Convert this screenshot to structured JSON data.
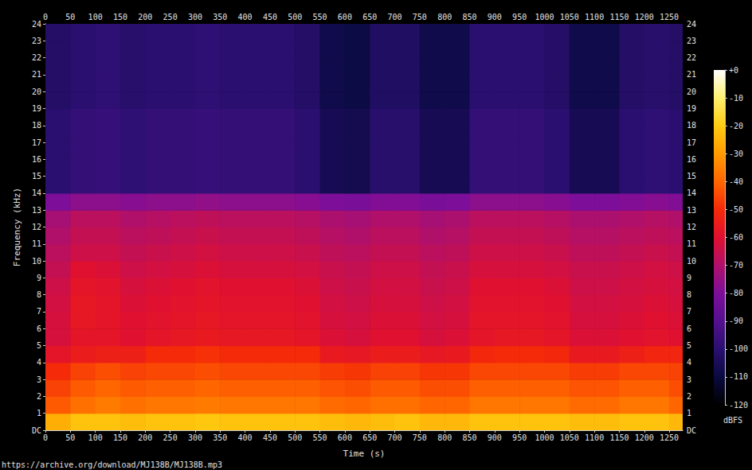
{
  "chart_data": {
    "type": "heatmap",
    "xlabel": "Time (s)",
    "ylabel": "Frequency (kHz)",
    "caption": "https://archive.org/download/MJ138B/MJ138B.mp3",
    "xlim": [
      0,
      1277
    ],
    "ylim": [
      0,
      24
    ],
    "xticks": [
      0,
      50,
      100,
      150,
      200,
      250,
      300,
      350,
      400,
      450,
      500,
      550,
      600,
      650,
      700,
      750,
      800,
      850,
      900,
      950,
      1000,
      1050,
      1100,
      1150,
      1200,
      1250
    ],
    "yticks": [
      {
        "value": 0,
        "label": "DC"
      },
      1,
      2,
      3,
      4,
      5,
      6,
      7,
      8,
      9,
      10,
      11,
      12,
      13,
      14,
      15,
      16,
      17,
      18,
      19,
      20,
      21,
      22,
      23,
      24
    ],
    "grid": false,
    "x_bins": [
      0,
      50,
      100,
      150,
      200,
      250,
      300,
      350,
      400,
      450,
      500,
      550,
      600,
      650,
      700,
      750,
      800,
      850,
      900,
      950,
      1000,
      1050,
      1100,
      1150,
      1200,
      1250,
      1277
    ],
    "y_bins": [
      0,
      1,
      2,
      3,
      4,
      5,
      6,
      7,
      8,
      9,
      10,
      11,
      12,
      13,
      14,
      15,
      16,
      17,
      18,
      19,
      20,
      21,
      22,
      23,
      24
    ],
    "cells": [
      [
        -26,
        -22,
        -22,
        -23,
        -22,
        -22,
        -21,
        -22,
        -22,
        -22,
        -22,
        -23,
        -24,
        -23,
        -22,
        -24,
        -24,
        -22,
        -22,
        -22,
        -22,
        -23,
        -23,
        -22,
        -22,
        -24
      ],
      [
        -42,
        -38,
        -36,
        -38,
        -37,
        -37,
        -36,
        -37,
        -37,
        -37,
        -37,
        -39,
        -40,
        -38,
        -38,
        -40,
        -40,
        -37,
        -37,
        -37,
        -37,
        -39,
        -39,
        -37,
        -37,
        -40
      ],
      [
        -46,
        -42,
        -40,
        -42,
        -41,
        -41,
        -40,
        -41,
        -41,
        -41,
        -41,
        -43,
        -44,
        -42,
        -42,
        -44,
        -44,
        -41,
        -41,
        -41,
        -41,
        -43,
        -43,
        -41,
        -41,
        -44
      ],
      [
        -50,
        -46,
        -44,
        -46,
        -45,
        -45,
        -44,
        -45,
        -45,
        -45,
        -45,
        -47,
        -48,
        -46,
        -46,
        -48,
        -48,
        -45,
        -45,
        -45,
        -45,
        -47,
        -47,
        -45,
        -45,
        -46
      ],
      [
        -58,
        -55,
        -54,
        -54,
        -50,
        -50,
        -49,
        -50,
        -50,
        -50,
        -50,
        -56,
        -57,
        -55,
        -55,
        -57,
        -56,
        -51,
        -50,
        -50,
        -51,
        -56,
        -56,
        -54,
        -52,
        -52
      ],
      [
        -62,
        -58,
        -58,
        -60,
        -58,
        -57,
        -56,
        -57,
        -57,
        -57,
        -58,
        -61,
        -62,
        -60,
        -60,
        -62,
        -61,
        -58,
        -57,
        -57,
        -58,
        -61,
        -61,
        -60,
        -59,
        -60
      ],
      [
        -62,
        -57,
        -58,
        -60,
        -59,
        -58,
        -57,
        -58,
        -58,
        -58,
        -59,
        -62,
        -63,
        -61,
        -61,
        -63,
        -62,
        -58,
        -58,
        -58,
        -59,
        -62,
        -62,
        -61,
        -60,
        -61
      ],
      [
        -63,
        -57,
        -58,
        -61,
        -60,
        -59,
        -58,
        -59,
        -59,
        -59,
        -60,
        -63,
        -64,
        -62,
        -62,
        -64,
        -63,
        -59,
        -59,
        -59,
        -60,
        -63,
        -63,
        -62,
        -61,
        -62
      ],
      [
        -64,
        -58,
        -59,
        -62,
        -61,
        -60,
        -59,
        -60,
        -60,
        -60,
        -61,
        -64,
        -65,
        -63,
        -63,
        -65,
        -64,
        -60,
        -60,
        -60,
        -61,
        -64,
        -64,
        -63,
        -62,
        -63
      ],
      [
        -66,
        -60,
        -61,
        -64,
        -63,
        -62,
        -61,
        -62,
        -62,
        -62,
        -63,
        -65,
        -66,
        -64,
        -64,
        -66,
        -65,
        -62,
        -62,
        -62,
        -63,
        -65,
        -65,
        -64,
        -63,
        -64
      ],
      [
        -68,
        -64,
        -64,
        -66,
        -65,
        -64,
        -63,
        -64,
        -64,
        -64,
        -65,
        -67,
        -68,
        -66,
        -66,
        -68,
        -67,
        -64,
        -64,
        -64,
        -65,
        -67,
        -67,
        -66,
        -65,
        -66
      ],
      [
        -70,
        -66,
        -66,
        -68,
        -67,
        -66,
        -65,
        -66,
        -66,
        -66,
        -67,
        -69,
        -70,
        -68,
        -68,
        -70,
        -69,
        -66,
        -66,
        -66,
        -67,
        -69,
        -69,
        -68,
        -67,
        -68
      ],
      [
        -72,
        -68,
        -68,
        -70,
        -69,
        -68,
        -67,
        -68,
        -68,
        -68,
        -69,
        -71,
        -72,
        -70,
        -70,
        -72,
        -71,
        -68,
        -68,
        -68,
        -69,
        -71,
        -71,
        -70,
        -69,
        -70
      ],
      [
        -80,
        -77,
        -77,
        -78,
        -77,
        -77,
        -76,
        -77,
        -77,
        -77,
        -78,
        -80,
        -81,
        -79,
        -79,
        -81,
        -80,
        -77,
        -77,
        -77,
        -78,
        -80,
        -80,
        -79,
        -78,
        -79
      ],
      [
        -100,
        -98,
        -97,
        -99,
        -98,
        -98,
        -97,
        -98,
        -98,
        -98,
        -100,
        -106,
        -107,
        -101,
        -101,
        -106,
        -106,
        -98,
        -98,
        -98,
        -100,
        -106,
        -106,
        -100,
        -99,
        -100
      ],
      [
        -100,
        -98,
        -97,
        -99,
        -98,
        -98,
        -97,
        -98,
        -98,
        -98,
        -100,
        -106,
        -107,
        -101,
        -101,
        -106,
        -106,
        -98,
        -98,
        -98,
        -100,
        -106,
        -106,
        -100,
        -99,
        -100
      ],
      [
        -100,
        -98,
        -97,
        -99,
        -98,
        -98,
        -97,
        -98,
        -98,
        -98,
        -100,
        -106,
        -107,
        -101,
        -101,
        -106,
        -106,
        -98,
        -98,
        -98,
        -100,
        -106,
        -106,
        -100,
        -99,
        -100
      ],
      [
        -100,
        -98,
        -97,
        -99,
        -98,
        -98,
        -97,
        -98,
        -98,
        -98,
        -100,
        -106,
        -107,
        -101,
        -101,
        -106,
        -106,
        -98,
        -98,
        -98,
        -100,
        -106,
        -106,
        -100,
        -99,
        -100
      ],
      [
        -100,
        -98,
        -97,
        -99,
        -98,
        -98,
        -97,
        -98,
        -98,
        -98,
        -100,
        -106,
        -107,
        -101,
        -101,
        -106,
        -106,
        -98,
        -98,
        -98,
        -100,
        -106,
        -106,
        -100,
        -99,
        -100
      ],
      [
        -102,
        -100,
        -99,
        -101,
        -100,
        -100,
        -99,
        -100,
        -100,
        -100,
        -102,
        -108,
        -109,
        -103,
        -103,
        -108,
        -108,
        -100,
        -100,
        -100,
        -102,
        -108,
        -108,
        -102,
        -101,
        -102
      ],
      [
        -102,
        -100,
        -99,
        -101,
        -100,
        -100,
        -99,
        -100,
        -100,
        -100,
        -102,
        -108,
        -109,
        -103,
        -103,
        -108,
        -108,
        -100,
        -100,
        -100,
        -102,
        -108,
        -108,
        -102,
        -101,
        -102
      ],
      [
        -102,
        -100,
        -99,
        -101,
        -100,
        -100,
        -99,
        -100,
        -100,
        -100,
        -102,
        -108,
        -109,
        -103,
        -103,
        -108,
        -108,
        -100,
        -100,
        -100,
        -102,
        -108,
        -108,
        -102,
        -101,
        -102
      ],
      [
        -102,
        -100,
        -99,
        -101,
        -100,
        -100,
        -99,
        -100,
        -100,
        -100,
        -102,
        -108,
        -109,
        -103,
        -103,
        -108,
        -108,
        -100,
        -100,
        -100,
        -102,
        -108,
        -108,
        -102,
        -101,
        -102
      ],
      [
        -102,
        -100,
        -99,
        -101,
        -100,
        -100,
        -99,
        -100,
        -100,
        -100,
        -102,
        -108,
        -109,
        -103,
        -103,
        -108,
        -108,
        -100,
        -100,
        -100,
        -102,
        -108,
        -108,
        -102,
        -101,
        -102
      ]
    ],
    "colorbar_range": [
      -120,
      0
    ],
    "colorbar_ticks": [
      -120,
      -110,
      -100,
      -90,
      -80,
      -70,
      -60,
      -50,
      -40,
      -30,
      -20,
      -10,
      {
        "value": 0,
        "label": "+0"
      }
    ],
    "colorbar_label": "dBFS"
  }
}
